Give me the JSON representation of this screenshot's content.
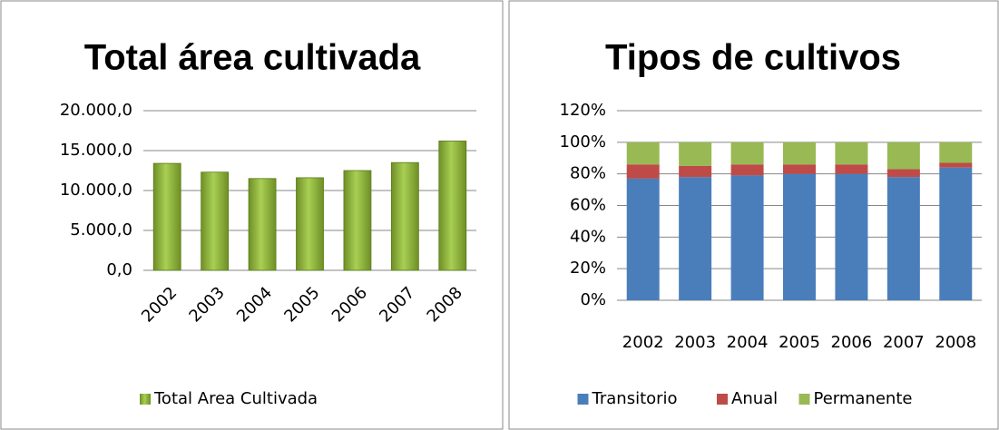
{
  "chart_data": [
    {
      "type": "bar",
      "title": "Total área cultivada",
      "categories": [
        "2002",
        "2003",
        "2004",
        "2005",
        "2006",
        "2007",
        "2008"
      ],
      "series": [
        {
          "name": "Total Area Cultivada",
          "color": "#8db33a",
          "values": [
            13400,
            12300,
            11500,
            11600,
            12500,
            13500,
            16200
          ]
        }
      ],
      "ylim": [
        0,
        20000
      ],
      "yticks": [
        {
          "value": 0,
          "label": "0,0"
        },
        {
          "value": 5000,
          "label": "5.000,0"
        },
        {
          "value": 10000,
          "label": "10.000,0"
        },
        {
          "value": 15000,
          "label": "15.000,0"
        },
        {
          "value": 20000,
          "label": "20.000,0"
        }
      ],
      "grid": true
    },
    {
      "type": "stacked_bar",
      "title": "Tipos de cultivos",
      "categories": [
        "2002",
        "2003",
        "2004",
        "2005",
        "2006",
        "2007",
        "2008"
      ],
      "series": [
        {
          "name": "Transitorio",
          "color": "#4a7ebb",
          "values": [
            77,
            78,
            79,
            80,
            80,
            78,
            84
          ]
        },
        {
          "name": "Anual",
          "color": "#be4b48",
          "values": [
            9,
            7,
            7,
            6,
            6,
            5,
            3
          ]
        },
        {
          "name": "Permanente",
          "color": "#98b954",
          "values": [
            14,
            15,
            14,
            14,
            14,
            17,
            13
          ]
        }
      ],
      "ylim": [
        0,
        120
      ],
      "yticks": [
        {
          "value": 0,
          "label": "0%"
        },
        {
          "value": 20,
          "label": "20%"
        },
        {
          "value": 40,
          "label": "40%"
        },
        {
          "value": 60,
          "label": "60%"
        },
        {
          "value": 80,
          "label": "80%"
        },
        {
          "value": 100,
          "label": "100%"
        },
        {
          "value": 120,
          "label": "120%"
        }
      ],
      "grid": true
    }
  ]
}
